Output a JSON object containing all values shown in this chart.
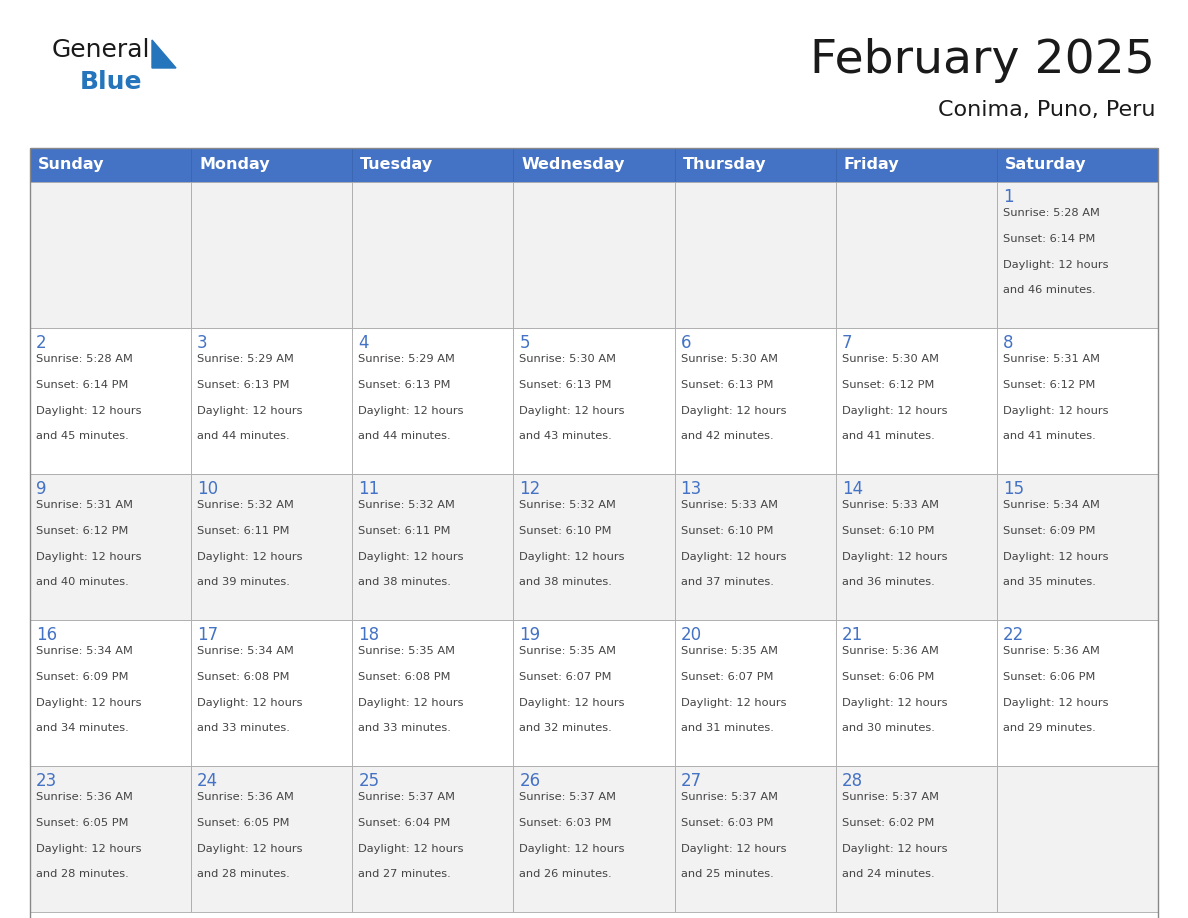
{
  "title": "February 2025",
  "subtitle": "Conima, Puno, Peru",
  "header_bg": "#4472C4",
  "header_text_color": "#FFFFFF",
  "header_font_size": 11.5,
  "day_names": [
    "Sunday",
    "Monday",
    "Tuesday",
    "Wednesday",
    "Thursday",
    "Friday",
    "Saturday"
  ],
  "title_font_size": 34,
  "subtitle_font_size": 16,
  "cell_bg_odd": "#F2F2F2",
  "cell_bg_even": "#FFFFFF",
  "border_color": "#AAAAAA",
  "number_color": "#4472C4",
  "text_color": "#444444",
  "logo_general_color": "#1a1a1a",
  "logo_blue_color": "#2475BB",
  "calendar": [
    [
      null,
      null,
      null,
      null,
      null,
      null,
      1
    ],
    [
      2,
      3,
      4,
      5,
      6,
      7,
      8
    ],
    [
      9,
      10,
      11,
      12,
      13,
      14,
      15
    ],
    [
      16,
      17,
      18,
      19,
      20,
      21,
      22
    ],
    [
      23,
      24,
      25,
      26,
      27,
      28,
      null
    ]
  ],
  "sun_data": {
    "1": {
      "sunrise": "5:28 AM",
      "sunset": "6:14 PM",
      "daylight_hours": 12,
      "daylight_minutes": 46
    },
    "2": {
      "sunrise": "5:28 AM",
      "sunset": "6:14 PM",
      "daylight_hours": 12,
      "daylight_minutes": 45
    },
    "3": {
      "sunrise": "5:29 AM",
      "sunset": "6:13 PM",
      "daylight_hours": 12,
      "daylight_minutes": 44
    },
    "4": {
      "sunrise": "5:29 AM",
      "sunset": "6:13 PM",
      "daylight_hours": 12,
      "daylight_minutes": 44
    },
    "5": {
      "sunrise": "5:30 AM",
      "sunset": "6:13 PM",
      "daylight_hours": 12,
      "daylight_minutes": 43
    },
    "6": {
      "sunrise": "5:30 AM",
      "sunset": "6:13 PM",
      "daylight_hours": 12,
      "daylight_minutes": 42
    },
    "7": {
      "sunrise": "5:30 AM",
      "sunset": "6:12 PM",
      "daylight_hours": 12,
      "daylight_minutes": 41
    },
    "8": {
      "sunrise": "5:31 AM",
      "sunset": "6:12 PM",
      "daylight_hours": 12,
      "daylight_minutes": 41
    },
    "9": {
      "sunrise": "5:31 AM",
      "sunset": "6:12 PM",
      "daylight_hours": 12,
      "daylight_minutes": 40
    },
    "10": {
      "sunrise": "5:32 AM",
      "sunset": "6:11 PM",
      "daylight_hours": 12,
      "daylight_minutes": 39
    },
    "11": {
      "sunrise": "5:32 AM",
      "sunset": "6:11 PM",
      "daylight_hours": 12,
      "daylight_minutes": 38
    },
    "12": {
      "sunrise": "5:32 AM",
      "sunset": "6:10 PM",
      "daylight_hours": 12,
      "daylight_minutes": 38
    },
    "13": {
      "sunrise": "5:33 AM",
      "sunset": "6:10 PM",
      "daylight_hours": 12,
      "daylight_minutes": 37
    },
    "14": {
      "sunrise": "5:33 AM",
      "sunset": "6:10 PM",
      "daylight_hours": 12,
      "daylight_minutes": 36
    },
    "15": {
      "sunrise": "5:34 AM",
      "sunset": "6:09 PM",
      "daylight_hours": 12,
      "daylight_minutes": 35
    },
    "16": {
      "sunrise": "5:34 AM",
      "sunset": "6:09 PM",
      "daylight_hours": 12,
      "daylight_minutes": 34
    },
    "17": {
      "sunrise": "5:34 AM",
      "sunset": "6:08 PM",
      "daylight_hours": 12,
      "daylight_minutes": 33
    },
    "18": {
      "sunrise": "5:35 AM",
      "sunset": "6:08 PM",
      "daylight_hours": 12,
      "daylight_minutes": 33
    },
    "19": {
      "sunrise": "5:35 AM",
      "sunset": "6:07 PM",
      "daylight_hours": 12,
      "daylight_minutes": 32
    },
    "20": {
      "sunrise": "5:35 AM",
      "sunset": "6:07 PM",
      "daylight_hours": 12,
      "daylight_minutes": 31
    },
    "21": {
      "sunrise": "5:36 AM",
      "sunset": "6:06 PM",
      "daylight_hours": 12,
      "daylight_minutes": 30
    },
    "22": {
      "sunrise": "5:36 AM",
      "sunset": "6:06 PM",
      "daylight_hours": 12,
      "daylight_minutes": 29
    },
    "23": {
      "sunrise": "5:36 AM",
      "sunset": "6:05 PM",
      "daylight_hours": 12,
      "daylight_minutes": 28
    },
    "24": {
      "sunrise": "5:36 AM",
      "sunset": "6:05 PM",
      "daylight_hours": 12,
      "daylight_minutes": 28
    },
    "25": {
      "sunrise": "5:37 AM",
      "sunset": "6:04 PM",
      "daylight_hours": 12,
      "daylight_minutes": 27
    },
    "26": {
      "sunrise": "5:37 AM",
      "sunset": "6:03 PM",
      "daylight_hours": 12,
      "daylight_minutes": 26
    },
    "27": {
      "sunrise": "5:37 AM",
      "sunset": "6:03 PM",
      "daylight_hours": 12,
      "daylight_minutes": 25
    },
    "28": {
      "sunrise": "5:37 AM",
      "sunset": "6:02 PM",
      "daylight_hours": 12,
      "daylight_minutes": 24
    }
  }
}
